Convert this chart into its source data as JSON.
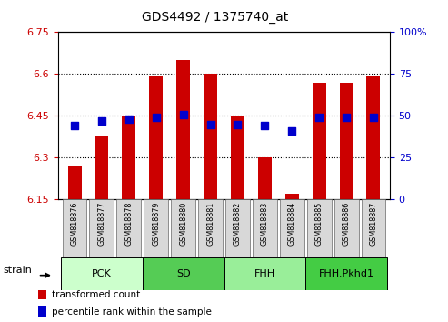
{
  "title": "GDS4492 / 1375740_at",
  "samples": [
    "GSM818876",
    "GSM818877",
    "GSM818878",
    "GSM818879",
    "GSM818880",
    "GSM818881",
    "GSM818882",
    "GSM818883",
    "GSM818884",
    "GSM818885",
    "GSM818886",
    "GSM818887"
  ],
  "transformed_count": [
    6.27,
    6.38,
    6.45,
    6.59,
    6.65,
    6.6,
    6.45,
    6.3,
    6.17,
    6.57,
    6.57,
    6.59
  ],
  "percentile_rank": [
    44,
    47,
    48,
    49,
    51,
    45,
    45,
    44,
    41,
    49,
    49,
    49
  ],
  "groups": [
    {
      "label": "PCK",
      "start": 0,
      "end": 2,
      "color": "#ccffcc"
    },
    {
      "label": "SD",
      "start": 3,
      "end": 5,
      "color": "#55cc55"
    },
    {
      "label": "FHH",
      "start": 6,
      "end": 8,
      "color": "#99ee99"
    },
    {
      "label": "FHH.Pkhd1",
      "start": 9,
      "end": 11,
      "color": "#44cc44"
    }
  ],
  "ylim_left": [
    6.15,
    6.75
  ],
  "ylim_right": [
    0,
    100
  ],
  "yticks_left": [
    6.15,
    6.3,
    6.45,
    6.6,
    6.75
  ],
  "yticks_right": [
    0,
    25,
    50,
    75,
    100
  ],
  "bar_color": "#cc0000",
  "dot_color": "#0000cc",
  "bar_width": 0.5,
  "dot_size": 35,
  "legend_items": [
    {
      "label": "transformed count",
      "color": "#cc0000"
    },
    {
      "label": "percentile rank within the sample",
      "color": "#0000cc"
    }
  ]
}
